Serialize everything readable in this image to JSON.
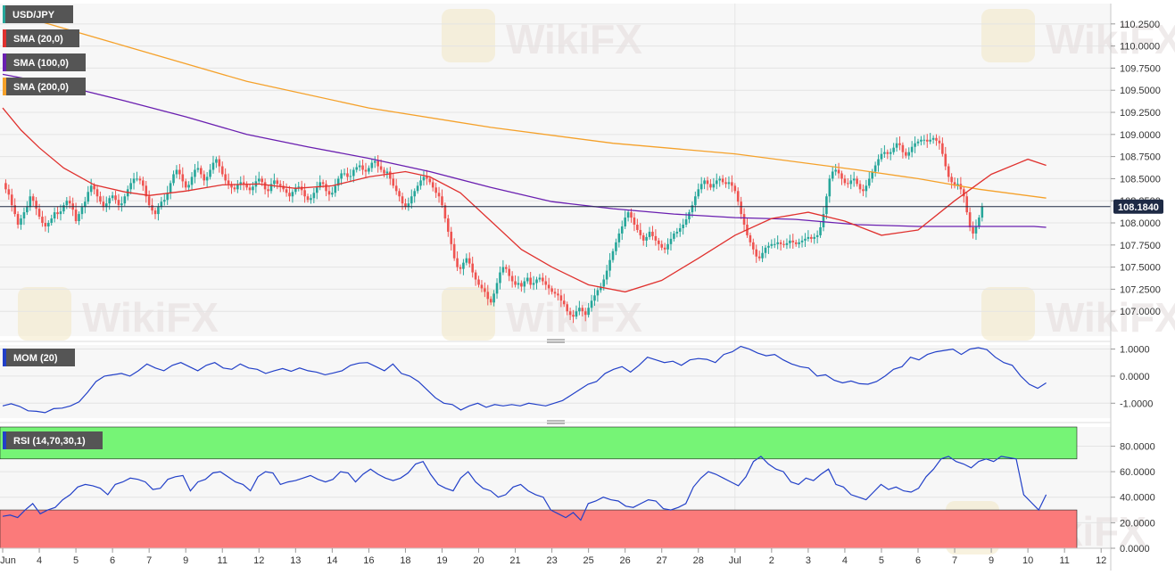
{
  "colors": {
    "bull": "#26a69a",
    "bear": "#ef5350",
    "sma20": "#e0312e",
    "sma100": "#6a1fb0",
    "sma200": "#f5a12a",
    "mom": "#2240c8",
    "rsi": "#2240c8",
    "rsi_overbought_zone": "#76f476",
    "rsi_oversold_zone": "#fb7a7a",
    "label_bg": "#555555",
    "price_tag_bg": "#1e2a45"
  },
  "watermark": "WikiFX",
  "chart_data": [
    {
      "type": "candlestick",
      "symbol_label": "USD/JPY",
      "indicators": [
        {
          "name": "SMA (20,0)",
          "color_key": "sma20"
        },
        {
          "name": "SMA (100,0)",
          "color_key": "sma100"
        },
        {
          "name": "SMA (200,0)",
          "color_key": "sma200"
        }
      ],
      "last_price": "108.1840",
      "last_value": 108.184,
      "ylim": [
        106.72,
        110.48
      ],
      "yticks": [
        "110.2500",
        "110.0000",
        "109.7500",
        "109.5000",
        "109.2500",
        "109.0000",
        "108.7500",
        "108.5000",
        "108.2500",
        "108.0000",
        "107.7500",
        "107.5000",
        "107.2500",
        "107.0000"
      ],
      "x_labels": [
        "Jun",
        "4",
        "5",
        "6",
        "7",
        "9",
        "11",
        "12",
        "13",
        "14",
        "16",
        "18",
        "19",
        "20",
        "21",
        "23",
        "25",
        "26",
        "27",
        "28",
        "Jul",
        "2",
        "3",
        "4",
        "5",
        "6",
        "7",
        "9",
        "10",
        "11",
        "12"
      ],
      "x_label_bar_index": [
        0,
        12,
        24,
        36,
        48,
        60,
        72,
        84,
        96,
        108,
        120,
        132,
        144,
        156,
        168,
        180,
        192,
        204,
        216,
        228,
        240,
        252,
        264,
        276,
        288,
        300,
        312,
        324,
        336,
        348,
        360
      ],
      "closes": [
        108.45,
        108.38,
        108.32,
        108.2,
        108.1,
        107.98,
        108.05,
        108.12,
        108.18,
        108.3,
        108.25,
        108.16,
        108.07,
        108.0,
        107.96,
        108.0,
        108.05,
        108.12,
        108.1,
        108.13,
        108.2,
        108.25,
        108.22,
        108.15,
        108.02,
        108.1,
        108.18,
        108.24,
        108.35,
        108.42,
        108.38,
        108.3,
        108.24,
        108.18,
        108.22,
        108.28,
        108.31,
        108.26,
        108.2,
        108.22,
        108.3,
        108.38,
        108.45,
        108.5,
        108.5,
        108.48,
        108.42,
        108.3,
        108.2,
        108.14,
        108.1,
        108.18,
        108.24,
        108.26,
        108.34,
        108.45,
        108.55,
        108.6,
        108.55,
        108.47,
        108.4,
        108.43,
        108.52,
        108.6,
        108.62,
        108.55,
        108.48,
        108.52,
        108.6,
        108.68,
        108.72,
        108.64,
        108.55,
        108.48,
        108.44,
        108.4,
        108.38,
        108.43,
        108.46,
        108.44,
        108.4,
        108.37,
        108.41,
        108.47,
        108.5,
        108.46,
        108.38,
        108.36,
        108.44,
        108.48,
        108.44,
        108.42,
        108.38,
        108.34,
        108.3,
        108.35,
        108.4,
        108.41,
        108.37,
        108.3,
        108.26,
        108.28,
        108.34,
        108.4,
        108.46,
        108.44,
        108.36,
        108.32,
        108.34,
        108.42,
        108.5,
        108.56,
        108.56,
        108.52,
        108.53,
        108.6,
        108.63,
        108.65,
        108.6,
        108.58,
        108.62,
        108.68,
        108.7,
        108.64,
        108.6,
        108.56,
        108.58,
        108.5,
        108.42,
        108.36,
        108.3,
        108.22,
        108.18,
        108.22,
        108.3,
        108.36,
        108.42,
        108.48,
        108.52,
        108.5,
        108.46,
        108.4,
        108.34,
        108.3,
        108.2,
        108.05,
        107.9,
        107.76,
        107.6,
        107.5,
        107.48,
        107.55,
        107.6,
        107.54,
        107.44,
        107.36,
        107.3,
        107.26,
        107.22,
        107.14,
        107.1,
        107.2,
        107.32,
        107.44,
        107.5,
        107.48,
        107.4,
        107.34,
        107.3,
        107.32,
        107.28,
        107.34,
        107.38,
        107.3,
        107.32,
        107.36,
        107.38,
        107.34,
        107.3,
        107.26,
        107.22,
        107.2,
        107.18,
        107.12,
        107.08,
        107.0,
        106.96,
        106.94,
        107.0,
        107.04,
        107.0,
        106.96,
        107.04,
        107.12,
        107.18,
        107.24,
        107.28,
        107.36,
        107.46,
        107.58,
        107.68,
        107.78,
        107.88,
        107.96,
        108.06,
        108.12,
        108.06,
        107.98,
        107.92,
        107.86,
        107.8,
        107.84,
        107.9,
        107.85,
        107.8,
        107.76,
        107.72,
        107.7,
        107.76,
        107.82,
        107.88,
        107.9,
        107.94,
        107.98,
        108.04,
        108.12,
        108.2,
        108.3,
        108.38,
        108.44,
        108.48,
        108.44,
        108.4,
        108.44,
        108.48,
        108.5,
        108.46,
        108.44,
        108.46,
        108.42,
        108.36,
        108.24,
        108.1,
        107.98,
        107.86,
        107.78,
        107.7,
        107.62,
        107.6,
        107.66,
        107.72,
        107.74,
        107.76,
        107.76,
        107.78,
        107.76,
        107.75,
        107.77,
        107.8,
        107.78,
        107.76,
        107.78,
        107.8,
        107.82,
        107.84,
        107.82,
        107.84,
        107.86,
        107.95,
        108.1,
        108.3,
        108.5,
        108.58,
        108.6,
        108.56,
        108.5,
        108.45,
        108.44,
        108.48,
        108.5,
        108.44,
        108.38,
        108.36,
        108.42,
        108.5,
        108.58,
        108.65,
        108.72,
        108.78,
        108.8,
        108.78,
        108.8,
        108.85,
        108.9,
        108.88,
        108.8,
        108.76,
        108.8,
        108.86,
        108.9,
        108.92,
        108.94,
        108.94,
        108.92,
        108.94,
        108.96,
        108.93,
        108.9,
        108.78,
        108.64,
        108.52,
        108.46,
        108.42,
        108.44,
        108.38,
        108.3,
        108.12,
        107.95,
        107.88,
        107.96,
        108.06,
        108.184
      ],
      "sma20_points": [
        [
          0,
          109.3
        ],
        [
          6,
          109.05
        ],
        [
          12,
          108.85
        ],
        [
          20,
          108.62
        ],
        [
          30,
          108.43
        ],
        [
          40,
          108.35
        ],
        [
          48,
          108.31
        ],
        [
          60,
          108.36
        ],
        [
          72,
          108.43
        ],
        [
          84,
          108.44
        ],
        [
          96,
          108.39
        ],
        [
          108,
          108.42
        ],
        [
          120,
          108.52
        ],
        [
          132,
          108.58
        ],
        [
          140,
          108.52
        ],
        [
          150,
          108.34
        ],
        [
          160,
          108.02
        ],
        [
          170,
          107.7
        ],
        [
          180,
          107.5
        ],
        [
          192,
          107.3
        ],
        [
          204,
          107.22
        ],
        [
          216,
          107.35
        ],
        [
          228,
          107.6
        ],
        [
          240,
          107.86
        ],
        [
          252,
          108.05
        ],
        [
          264,
          108.12
        ],
        [
          276,
          108.02
        ],
        [
          288,
          107.86
        ],
        [
          300,
          107.92
        ],
        [
          312,
          108.25
        ],
        [
          324,
          108.55
        ],
        [
          336,
          108.72
        ],
        [
          342,
          108.65
        ]
      ],
      "sma100_points": [
        [
          0,
          109.68
        ],
        [
          20,
          109.55
        ],
        [
          40,
          109.38
        ],
        [
          60,
          109.2
        ],
        [
          80,
          109.0
        ],
        [
          100,
          108.86
        ],
        [
          120,
          108.73
        ],
        [
          140,
          108.58
        ],
        [
          160,
          108.4
        ],
        [
          180,
          108.24
        ],
        [
          200,
          108.16
        ],
        [
          220,
          108.1
        ],
        [
          240,
          108.06
        ],
        [
          260,
          108.04
        ],
        [
          280,
          107.98
        ],
        [
          300,
          107.96
        ],
        [
          320,
          107.96
        ],
        [
          338,
          107.96
        ],
        [
          342,
          107.95
        ]
      ],
      "sma200_points": [
        [
          0,
          110.4
        ],
        [
          40,
          110.0
        ],
        [
          80,
          109.6
        ],
        [
          120,
          109.3
        ],
        [
          160,
          109.08
        ],
        [
          200,
          108.9
        ],
        [
          240,
          108.78
        ],
        [
          280,
          108.6
        ],
        [
          300,
          108.5
        ],
        [
          320,
          108.38
        ],
        [
          342,
          108.28
        ]
      ]
    },
    {
      "type": "line",
      "label": "MOM (20)",
      "yticks": [
        "1.0000",
        "0.0000",
        "-1.0000"
      ],
      "ylim": [
        -1.55,
        1.15
      ],
      "values": [
        -1.1,
        -1.02,
        -1.12,
        -1.28,
        -1.3,
        -1.35,
        -1.2,
        -1.18,
        -1.1,
        -0.95,
        -0.6,
        -0.2,
        0.0,
        0.05,
        0.1,
        0.0,
        0.2,
        0.45,
        0.3,
        0.2,
        0.4,
        0.5,
        0.35,
        0.2,
        0.4,
        0.5,
        0.3,
        0.25,
        0.45,
        0.3,
        0.25,
        0.1,
        0.2,
        0.28,
        0.18,
        0.3,
        0.2,
        0.15,
        0.05,
        0.12,
        0.2,
        0.4,
        0.48,
        0.5,
        0.35,
        0.2,
        0.45,
        0.1,
        0.0,
        -0.2,
        -0.5,
        -0.8,
        -1.0,
        -1.05,
        -1.25,
        -1.1,
        -1.0,
        -1.15,
        -1.05,
        -1.1,
        -1.05,
        -1.1,
        -1.0,
        -1.05,
        -1.1,
        -1.0,
        -0.9,
        -0.7,
        -0.5,
        -0.3,
        -0.2,
        0.1,
        0.25,
        0.35,
        0.15,
        0.4,
        0.7,
        0.6,
        0.5,
        0.55,
        0.4,
        0.6,
        0.65,
        0.62,
        0.5,
        0.8,
        0.9,
        1.1,
        1.0,
        0.85,
        0.75,
        0.8,
        0.6,
        0.45,
        0.35,
        0.3,
        0.0,
        0.05,
        -0.15,
        -0.25,
        -0.18,
        -0.28,
        -0.3,
        -0.2,
        0.0,
        0.25,
        0.35,
        0.7,
        0.6,
        0.8,
        0.9,
        0.95,
        1.0,
        0.8,
        1.0,
        1.05,
        0.98,
        0.7,
        0.5,
        0.4,
        0.0,
        -0.3,
        -0.45,
        -0.25
      ],
      "x_end_bar": 342
    },
    {
      "type": "line",
      "label": "RSI (14,70,30,1)",
      "yticks": [
        "80.0000",
        "60.0000",
        "40.0000",
        "20.0000",
        "0.0000"
      ],
      "ylim": [
        0,
        95
      ],
      "overbought": 70,
      "oversold": 30,
      "values": [
        25,
        26,
        24,
        30,
        35,
        27,
        30,
        32,
        38,
        42,
        48,
        50,
        49,
        47,
        42,
        50,
        52,
        55,
        54,
        52,
        46,
        47,
        54,
        56,
        57,
        45,
        52,
        54,
        59,
        60,
        56,
        52,
        50,
        45,
        56,
        60,
        59,
        50,
        52,
        53,
        55,
        57,
        54,
        52,
        54,
        60,
        59,
        52,
        58,
        62,
        58,
        55,
        53,
        55,
        59,
        66,
        68,
        58,
        50,
        47,
        45,
        55,
        60,
        52,
        47,
        45,
        40,
        42,
        48,
        50,
        45,
        42,
        40,
        30,
        27,
        24,
        28,
        22,
        35,
        37,
        40,
        38,
        37,
        33,
        32,
        35,
        38,
        37,
        31,
        30,
        32,
        35,
        48,
        55,
        60,
        58,
        55,
        52,
        49,
        56,
        68,
        72,
        66,
        62,
        60,
        52,
        50,
        55,
        53,
        58,
        62,
        50,
        48,
        42,
        40,
        38,
        44,
        50,
        46,
        48,
        45,
        44,
        47,
        56,
        62,
        70,
        72,
        68,
        66,
        63,
        68,
        70,
        68,
        72,
        71,
        70,
        42,
        36,
        30,
        42
      ]
    }
  ]
}
